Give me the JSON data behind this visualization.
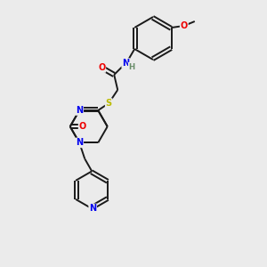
{
  "bg_color": "#ebebeb",
  "bond_color": "#1a1a1a",
  "atom_colors": {
    "N": "#0000ee",
    "O": "#ee0000",
    "S": "#bbbb00",
    "H": "#6b8e6b",
    "C": "#1a1a1a"
  },
  "fig_size": [
    3.0,
    3.0
  ],
  "dpi": 100
}
